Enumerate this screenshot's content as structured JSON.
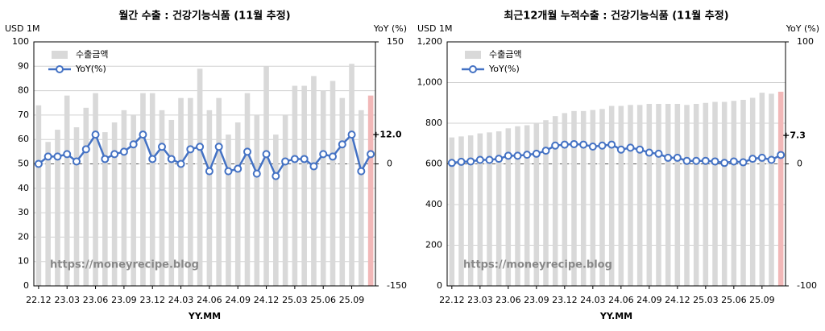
{
  "chart_data": [
    {
      "type": "bar_line",
      "title": "월간 수출 : 건강기능식품 (11월 추정)",
      "y_label": "USD 1M",
      "y2_label": "YoY (%)",
      "x_label": "YY.MM",
      "watermark": "https://moneyrecipe.blog",
      "annotation": "+12.0",
      "categories": [
        "22.12",
        null,
        null,
        "23.03",
        null,
        null,
        "23.06",
        null,
        null,
        "23.09",
        null,
        null,
        "23.12",
        null,
        null,
        "24.03",
        null,
        null,
        "24.06",
        null,
        null,
        "24.09",
        null,
        null,
        "24.12",
        null,
        null,
        "25.03",
        null,
        null,
        "25.06",
        null,
        null,
        "25.09",
        null,
        null
      ],
      "series": [
        {
          "name": "수출금액",
          "color": "#d9d9d9",
          "last_color": "#f2b8b8",
          "values": [
            74,
            59,
            64,
            78,
            65,
            73,
            79,
            63,
            67,
            72,
            70,
            79,
            79,
            72,
            68,
            77,
            77,
            89,
            72,
            77,
            62,
            67,
            79,
            70,
            90,
            62,
            70,
            82,
            82,
            86,
            80,
            84,
            77,
            91,
            72,
            78
          ]
        },
        {
          "name": "YoY(%)",
          "color": "#4472c4",
          "axis": "y2",
          "values": [
            0,
            9,
            9,
            12,
            3,
            18,
            36,
            6,
            12,
            15,
            24,
            36,
            6,
            21,
            6,
            0,
            18,
            21,
            -9,
            21,
            -9,
            -6,
            15,
            -12,
            12,
            -15,
            3,
            6,
            6,
            -3,
            12,
            9,
            24,
            36,
            -9,
            12.0
          ]
        }
      ],
      "ylim": [
        0,
        100
      ],
      "yticks": [
        0,
        10,
        20,
        30,
        40,
        50,
        60,
        70,
        80,
        90,
        100
      ],
      "y2lim": [
        -150,
        150
      ],
      "y2ticks": [
        -150,
        0,
        150
      ],
      "grid": true
    },
    {
      "type": "bar_line",
      "title": "최근12개월 누적수출 : 건강기능식품 (11월 추정)",
      "y_label": "USD 1M",
      "y2_label": "YoY (%)",
      "x_label": "YY.MM",
      "watermark": "https://moneyrecipe.blog",
      "annotation": "+7.3",
      "categories": [
        "22.12",
        null,
        null,
        "23.03",
        null,
        null,
        "23.06",
        null,
        null,
        "23.09",
        null,
        null,
        "23.12",
        null,
        null,
        "24.03",
        null,
        null,
        "24.06",
        null,
        null,
        "24.09",
        null,
        null,
        "24.12",
        null,
        null,
        "25.03",
        null,
        null,
        "25.06",
        null,
        null,
        "25.09",
        null,
        null
      ],
      "series": [
        {
          "name": "수출금액",
          "color": "#d9d9d9",
          "last_color": "#f2b8b8",
          "values": [
            730,
            735,
            740,
            750,
            755,
            760,
            775,
            785,
            790,
            800,
            815,
            835,
            850,
            860,
            860,
            865,
            870,
            885,
            885,
            890,
            890,
            895,
            895,
            895,
            895,
            890,
            895,
            900,
            905,
            905,
            910,
            915,
            925,
            950,
            945,
            955
          ]
        },
        {
          "name": "YoY(%)",
          "color": "#4472c4",
          "axis": "y2",
          "values": [
            0.8,
            1.7,
            2,
            3.3,
            3.3,
            4.2,
            6.7,
            6.7,
            7.5,
            8.3,
            10.8,
            15,
            15.8,
            16.2,
            15.8,
            14.2,
            15,
            15.8,
            11.7,
            13.3,
            11.7,
            9.2,
            8.3,
            5,
            5,
            2.5,
            2.5,
            2.5,
            2,
            0.8,
            2,
            1.3,
            4.2,
            5,
            3.3,
            7.3
          ]
        }
      ],
      "ylim": [
        0,
        1200
      ],
      "yticks": [
        0,
        200,
        400,
        600,
        800,
        {
          "value": 1000,
          "label": "1,000"
        },
        {
          "value": 1200,
          "label": "1,200"
        }
      ],
      "y2lim": [
        -100,
        100
      ],
      "y2ticks": [
        -100,
        0,
        100
      ],
      "grid": true
    }
  ]
}
